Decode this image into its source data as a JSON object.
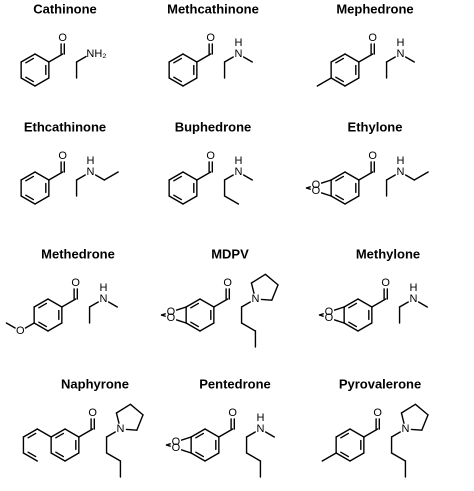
{
  "compounds": [
    {
      "name": "Cathinone",
      "labels": [
        "O",
        "NH₂"
      ]
    },
    {
      "name": "Methcathinone",
      "labels": [
        "O",
        "H",
        "N"
      ]
    },
    {
      "name": "Mephedrone",
      "labels": [
        "O",
        "H",
        "N"
      ]
    },
    {
      "name": "Ethcathinone",
      "labels": [
        "O",
        "H",
        "N"
      ]
    },
    {
      "name": "Buphedrone",
      "labels": [
        "O",
        "H",
        "N"
      ]
    },
    {
      "name": "Ethylone",
      "labels": [
        "O",
        "H",
        "N",
        "O",
        "O"
      ]
    },
    {
      "name": "Methedrone",
      "labels": [
        "O",
        "H",
        "N",
        "O"
      ]
    },
    {
      "name": "MDPV",
      "labels": [
        "O",
        "N",
        "O",
        "O"
      ]
    },
    {
      "name": "Methylone",
      "labels": [
        "O",
        "H",
        "N",
        "O",
        "O"
      ]
    },
    {
      "name": "Naphyrone",
      "labels": [
        "O",
        "N"
      ]
    },
    {
      "name": "Pentedrone",
      "labels": [
        "O",
        "H",
        "N",
        "O",
        "O"
      ]
    },
    {
      "name": "Pyrovalerone",
      "labels": [
        "O",
        "N"
      ]
    }
  ]
}
